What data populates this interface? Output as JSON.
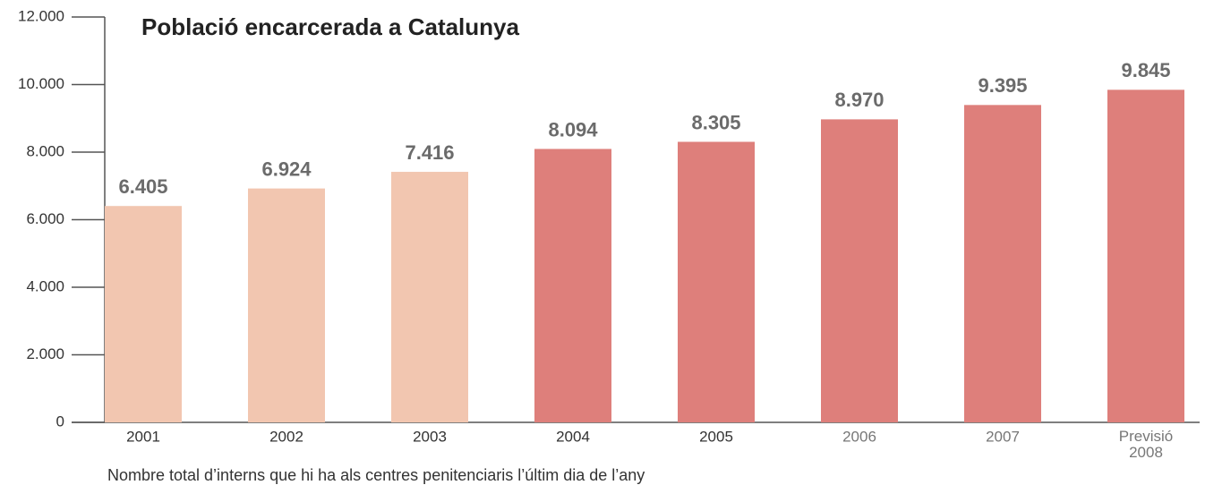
{
  "chart_data": {
    "type": "bar",
    "title": "Població encarcerada a Catalunya",
    "caption": "Nombre total d’interns que hi ha als centres penitenciaris l’últim dia de l’any",
    "categories": [
      "2001",
      "2002",
      "2003",
      "2004",
      "2005",
      "2006",
      "2007",
      "Previsió\n2008"
    ],
    "values": [
      6405,
      6924,
      7416,
      8094,
      8305,
      8970,
      9395,
      9845
    ],
    "value_labels": [
      "6.405",
      "6.924",
      "7.416",
      "8.094",
      "8.305",
      "8.970",
      "9.395",
      "9.845"
    ],
    "colors": [
      "#f2c6b0",
      "#f2c6b0",
      "#f2c6b0",
      "#de7f7b",
      "#de7f7b",
      "#de7f7b",
      "#de7f7b",
      "#de7f7b"
    ],
    "ylim": [
      0,
      12000
    ],
    "yticks": [
      0,
      {
        "value": 2000,
        "label": "2.000"
      },
      {
        "value": 4000,
        "label": "4.000"
      },
      {
        "value": 6000,
        "label": "6.000"
      },
      {
        "value": 8000,
        "label": "8.000"
      },
      {
        "value": 10000,
        "label": "10.000"
      },
      {
        "value": 12000,
        "label": "12.000"
      }
    ],
    "grid": false
  }
}
